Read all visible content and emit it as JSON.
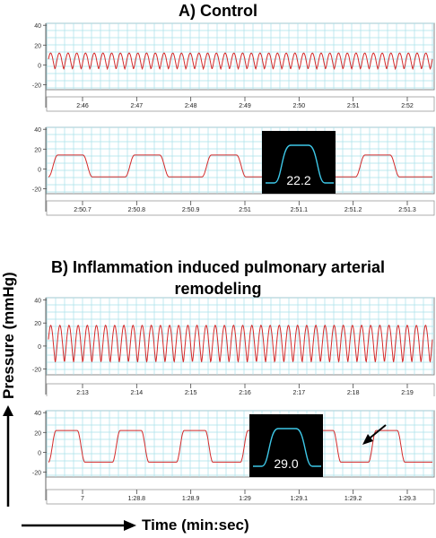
{
  "sections": {
    "a_title": "A) Control",
    "b_title_line1": "B) Inflammation induced pulmonary arterial",
    "b_title_line2": "remodeling"
  },
  "axes": {
    "y_label": "Pressure (mmHg)",
    "x_label": "Time (min:sec)"
  },
  "colors": {
    "trace": "#d42a2a",
    "grid": "#a8e0ea",
    "inset_bg": "#000000",
    "inset_trace": "#3ec8e8"
  },
  "chart_data": [
    {
      "type": "line",
      "id": "A-overview",
      "y_ticks": [
        "40",
        "20",
        "0",
        "-20"
      ],
      "ylim": [
        -25,
        42
      ],
      "x_ticks": [
        "2:46",
        "2:47",
        "2:48",
        "2:49",
        "2:50",
        "2:51",
        "2:52"
      ],
      "series": {
        "baseline": 0,
        "amplitude_peak": 12,
        "trough": -4,
        "cycles": 44
      },
      "grid": true
    },
    {
      "type": "line",
      "id": "A-zoom",
      "y_ticks": [
        "40",
        "20",
        "0",
        "-20"
      ],
      "ylim": [
        -25,
        42
      ],
      "x_ticks": [
        "2:50.7",
        "2:50.8",
        "2:50.9",
        "2:51",
        "2:51.1",
        "2:51.2",
        "2:51.3"
      ],
      "series": {
        "peak": 14,
        "trough": -8,
        "cycles": 5
      },
      "inset_value": "22.2",
      "grid": true
    },
    {
      "type": "line",
      "id": "B-overview",
      "y_ticks": [
        "40",
        "20",
        "0",
        "-20"
      ],
      "ylim": [
        -25,
        42
      ],
      "x_ticks": [
        "2:13",
        "2:14",
        "2:15",
        "2:16",
        "2:17",
        "2:18",
        "2:19"
      ],
      "series": {
        "baseline": 2,
        "amplitude_peak": 16,
        "trough": -14,
        "cycles": 42
      },
      "grid": true
    },
    {
      "type": "line",
      "id": "B-zoom",
      "y_ticks": [
        "40",
        "20",
        "0",
        "-20"
      ],
      "ylim": [
        -25,
        42
      ],
      "x_ticks": [
        "7",
        "1:28.8",
        "1:28.9",
        "1:29",
        "1:29.1",
        "1:29.2",
        "1:29.3"
      ],
      "series": {
        "peak": 22,
        "trough": -10,
        "cycles": 6
      },
      "inset_value": "29.0",
      "grid": true
    }
  ]
}
